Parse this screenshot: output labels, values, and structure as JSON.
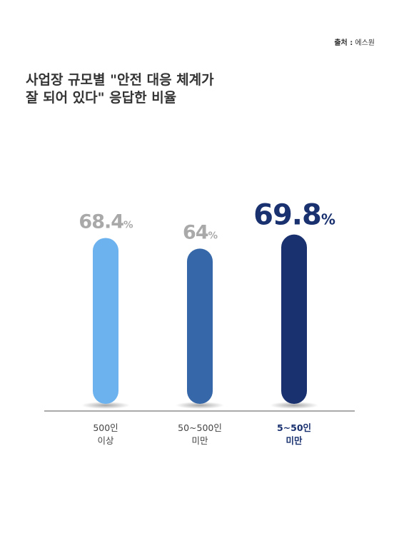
{
  "chart_data": {
    "type": "bar",
    "source": {
      "label": "출처 :",
      "text": "에스원"
    },
    "title": [
      "사업장 규모별 \"안전 대응 체계가",
      "잘 되어 있다\" 응답한 비율"
    ],
    "categories": [
      [
        "500인",
        "이상"
      ],
      [
        "50~500인",
        "미만"
      ],
      [
        "5~50인",
        "미만"
      ]
    ],
    "values": [
      68.4,
      64,
      69.8
    ],
    "value_labels": [
      "68.4%",
      "64%",
      "69.8%"
    ],
    "colors": [
      "#6cb2ee",
      "#3567a9",
      "#1a3170"
    ],
    "label_colors": [
      "#a9a9a9",
      "#a9a9a9",
      "#1a3170"
    ]
  }
}
